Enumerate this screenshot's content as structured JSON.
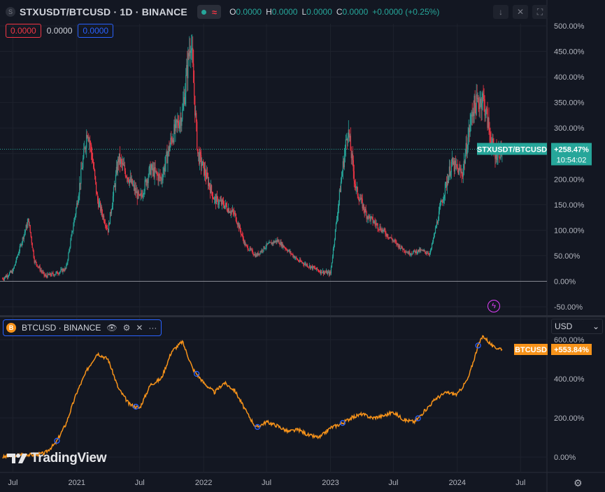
{
  "header": {
    "symbol_icon": "S",
    "title": "STXUSDT/BTCUSD · 1D · BINANCE",
    "ohlc": [
      {
        "k": "O",
        "v": "0.0000"
      },
      {
        "k": "H",
        "v": "0.0000"
      },
      {
        "k": "L",
        "v": "0.0000"
      },
      {
        "k": "C",
        "v": "0.0000"
      }
    ],
    "change": "+0.0000 (+0.25%)",
    "toolbar_icons": [
      "arrow-down-icon",
      "close-icon",
      "fullscreen-icon"
    ]
  },
  "values_row": {
    "sell": "0.0000",
    "spread": "0.0000",
    "buy": "0.0000"
  },
  "btc_legend": {
    "icon": "B",
    "title": "BTCUSD · BINANCE"
  },
  "currency_select": {
    "value": "USD"
  },
  "branding": {
    "logo_text": "TradingView"
  },
  "colors": {
    "up": "#26a69a",
    "down": "#f23645",
    "btc_line": "#f7931a",
    "accent": "#2962ff",
    "background": "#131722"
  },
  "chart_data": [
    {
      "type": "candlestick",
      "series": [
        {
          "name": "STXUSDT/BTCUSD"
        }
      ],
      "y_unit": "%",
      "ylim": [
        -60,
        505
      ],
      "yticks": [
        "500.00%",
        "450.00%",
        "400.00%",
        "350.00%",
        "300.00%",
        "250.00%",
        "200.00%",
        "150.00%",
        "100.00%",
        "50.00%",
        "0.00%",
        "-50.00%"
      ],
      "ytick_values": [
        500,
        450,
        400,
        350,
        300,
        250,
        200,
        150,
        100,
        50,
        0,
        -50
      ],
      "last_label": {
        "symbol": "STXUSDT/BTCUSD",
        "value": "+258.47%",
        "countdown": "10:54:02"
      },
      "approx_closes": [
        {
          "x": "2020-06-01",
          "y": 5
        },
        {
          "x": "2020-07-01",
          "y": 20
        },
        {
          "x": "2020-08-01",
          "y": 90
        },
        {
          "x": "2020-08-15",
          "y": 120
        },
        {
          "x": "2020-09-01",
          "y": 40
        },
        {
          "x": "2020-10-01",
          "y": 10
        },
        {
          "x": "2020-11-01",
          "y": 15
        },
        {
          "x": "2020-12-01",
          "y": 25
        },
        {
          "x": "2021-01-01",
          "y": 150
        },
        {
          "x": "2021-02-01",
          "y": 300
        },
        {
          "x": "2021-02-15",
          "y": 240
        },
        {
          "x": "2021-03-01",
          "y": 160
        },
        {
          "x": "2021-04-01",
          "y": 100
        },
        {
          "x": "2021-05-01",
          "y": 240
        },
        {
          "x": "2021-06-01",
          "y": 200
        },
        {
          "x": "2021-07-01",
          "y": 160
        },
        {
          "x": "2021-08-01",
          "y": 220
        },
        {
          "x": "2021-09-01",
          "y": 200
        },
        {
          "x": "2021-10-01",
          "y": 280
        },
        {
          "x": "2021-11-01",
          "y": 330
        },
        {
          "x": "2021-11-25",
          "y": 480
        },
        {
          "x": "2021-12-15",
          "y": 250
        },
        {
          "x": "2022-01-01",
          "y": 220
        },
        {
          "x": "2022-02-01",
          "y": 160
        },
        {
          "x": "2022-03-01",
          "y": 150
        },
        {
          "x": "2022-04-01",
          "y": 130
        },
        {
          "x": "2022-05-01",
          "y": 70
        },
        {
          "x": "2022-06-01",
          "y": 50
        },
        {
          "x": "2022-07-01",
          "y": 70
        },
        {
          "x": "2022-08-01",
          "y": 80
        },
        {
          "x": "2022-09-01",
          "y": 60
        },
        {
          "x": "2022-10-01",
          "y": 40
        },
        {
          "x": "2022-11-01",
          "y": 30
        },
        {
          "x": "2022-12-01",
          "y": 20
        },
        {
          "x": "2023-01-01",
          "y": 15
        },
        {
          "x": "2023-02-01",
          "y": 200
        },
        {
          "x": "2023-02-20",
          "y": 300
        },
        {
          "x": "2023-03-15",
          "y": 180
        },
        {
          "x": "2023-04-15",
          "y": 130
        },
        {
          "x": "2023-05-15",
          "y": 110
        },
        {
          "x": "2023-06-15",
          "y": 90
        },
        {
          "x": "2023-07-15",
          "y": 70
        },
        {
          "x": "2023-08-15",
          "y": 55
        },
        {
          "x": "2023-09-15",
          "y": 60
        },
        {
          "x": "2023-10-15",
          "y": 55
        },
        {
          "x": "2023-11-15",
          "y": 150
        },
        {
          "x": "2023-12-15",
          "y": 230
        },
        {
          "x": "2024-01-15",
          "y": 210
        },
        {
          "x": "2024-02-15",
          "y": 340
        },
        {
          "x": "2024-03-15",
          "y": 360
        },
        {
          "x": "2024-04-15",
          "y": 250
        },
        {
          "x": "2024-05-10",
          "y": 258
        }
      ]
    },
    {
      "type": "line",
      "series": [
        {
          "name": "BTCUSD"
        }
      ],
      "y_unit": "%",
      "ylim": [
        -20,
        660
      ],
      "yticks": [
        "600.00%",
        "400.00%",
        "200.00%",
        "0.00%"
      ],
      "ytick_values": [
        600,
        400,
        200,
        0
      ],
      "last_label": {
        "symbol": "BTCUSD",
        "value": "+553.84%"
      },
      "approx_values": [
        {
          "x": "2020-06-01",
          "y": 0
        },
        {
          "x": "2020-07-01",
          "y": 5
        },
        {
          "x": "2020-08-01",
          "y": 15
        },
        {
          "x": "2020-09-01",
          "y": 10
        },
        {
          "x": "2020-10-01",
          "y": 20
        },
        {
          "x": "2020-11-01",
          "y": 70
        },
        {
          "x": "2020-12-01",
          "y": 170
        },
        {
          "x": "2021-01-01",
          "y": 330
        },
        {
          "x": "2021-02-01",
          "y": 450
        },
        {
          "x": "2021-03-01",
          "y": 530
        },
        {
          "x": "2021-04-01",
          "y": 500
        },
        {
          "x": "2021-05-01",
          "y": 350
        },
        {
          "x": "2021-06-01",
          "y": 270
        },
        {
          "x": "2021-07-01",
          "y": 250
        },
        {
          "x": "2021-08-01",
          "y": 370
        },
        {
          "x": "2021-09-01",
          "y": 400
        },
        {
          "x": "2021-10-01",
          "y": 540
        },
        {
          "x": "2021-11-01",
          "y": 590
        },
        {
          "x": "2021-12-01",
          "y": 450
        },
        {
          "x": "2022-01-01",
          "y": 380
        },
        {
          "x": "2022-02-01",
          "y": 330
        },
        {
          "x": "2022-03-01",
          "y": 380
        },
        {
          "x": "2022-04-01",
          "y": 340
        },
        {
          "x": "2022-05-01",
          "y": 240
        },
        {
          "x": "2022-06-01",
          "y": 150
        },
        {
          "x": "2022-07-01",
          "y": 180
        },
        {
          "x": "2022-08-01",
          "y": 160
        },
        {
          "x": "2022-09-01",
          "y": 130
        },
        {
          "x": "2022-10-01",
          "y": 140
        },
        {
          "x": "2022-11-01",
          "y": 110
        },
        {
          "x": "2022-12-01",
          "y": 100
        },
        {
          "x": "2023-01-01",
          "y": 150
        },
        {
          "x": "2023-02-01",
          "y": 170
        },
        {
          "x": "2023-03-01",
          "y": 200
        },
        {
          "x": "2023-04-01",
          "y": 220
        },
        {
          "x": "2023-05-01",
          "y": 200
        },
        {
          "x": "2023-06-01",
          "y": 210
        },
        {
          "x": "2023-07-01",
          "y": 230
        },
        {
          "x": "2023-08-01",
          "y": 190
        },
        {
          "x": "2023-09-01",
          "y": 180
        },
        {
          "x": "2023-10-01",
          "y": 240
        },
        {
          "x": "2023-11-01",
          "y": 300
        },
        {
          "x": "2023-12-01",
          "y": 330
        },
        {
          "x": "2024-01-01",
          "y": 320
        },
        {
          "x": "2024-02-01",
          "y": 400
        },
        {
          "x": "2024-03-01",
          "y": 570
        },
        {
          "x": "2024-03-15",
          "y": 620
        },
        {
          "x": "2024-04-15",
          "y": 560
        },
        {
          "x": "2024-05-10",
          "y": 554
        }
      ]
    }
  ],
  "x_axis": {
    "ticks": [
      {
        "label": "Jul",
        "x": "2020-07-01"
      },
      {
        "label": "2021",
        "x": "2021-01-01"
      },
      {
        "label": "Jul",
        "x": "2021-07-01"
      },
      {
        "label": "2022",
        "x": "2022-01-01"
      },
      {
        "label": "Jul",
        "x": "2022-07-01"
      },
      {
        "label": "2023",
        "x": "2023-01-01"
      },
      {
        "label": "Jul",
        "x": "2023-07-01"
      },
      {
        "label": "2024",
        "x": "2024-01-01"
      },
      {
        "label": "Jul",
        "x": "2024-07-01"
      }
    ],
    "range": [
      "2020-05-25",
      "2024-09-15"
    ]
  }
}
